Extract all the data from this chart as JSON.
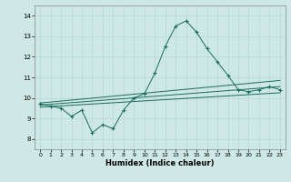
{
  "xlabel": "Humidex (Indice chaleur)",
  "xlim": [
    -0.5,
    23.5
  ],
  "ylim": [
    7.5,
    14.5
  ],
  "yticks": [
    8,
    9,
    10,
    11,
    12,
    13,
    14
  ],
  "xticks": [
    0,
    1,
    2,
    3,
    4,
    5,
    6,
    7,
    8,
    9,
    10,
    11,
    12,
    13,
    14,
    15,
    16,
    17,
    18,
    19,
    20,
    21,
    22,
    23
  ],
  "bg_color": "#cde8e5",
  "line_color": "#1a6b5e",
  "grid_color": "#b8d8d5",
  "lines": [
    {
      "x": [
        0,
        1,
        2,
        3,
        4,
        5,
        6,
        7,
        8,
        9,
        10,
        11,
        12,
        13,
        14,
        15,
        16,
        17,
        18,
        19,
        20,
        21,
        22,
        23
      ],
      "y": [
        9.7,
        9.6,
        9.5,
        9.1,
        9.4,
        8.3,
        8.7,
        8.5,
        9.4,
        10.0,
        10.2,
        11.2,
        12.5,
        13.5,
        13.75,
        13.2,
        12.4,
        11.75,
        11.1,
        10.4,
        10.3,
        10.4,
        10.55,
        10.4
      ],
      "marker": "+"
    },
    {
      "x": [
        0,
        23
      ],
      "y": [
        9.75,
        10.85
      ],
      "marker": null
    },
    {
      "x": [
        0,
        23
      ],
      "y": [
        9.65,
        10.55
      ],
      "marker": null
    },
    {
      "x": [
        0,
        23
      ],
      "y": [
        9.55,
        10.25
      ],
      "marker": null
    }
  ]
}
